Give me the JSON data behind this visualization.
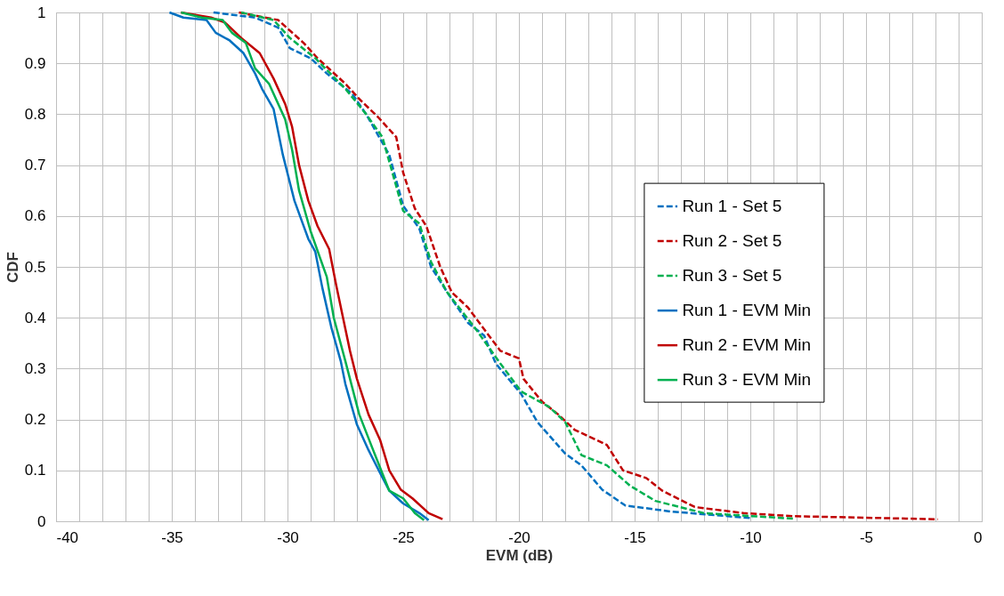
{
  "chart_data": {
    "type": "line",
    "xlabel": "EVM (dB)",
    "ylabel": "CDF",
    "xlim": [
      -40,
      0
    ],
    "ylim": [
      0,
      1
    ],
    "xticks": [
      -40,
      {
        "value": -39,
        "label": null
      },
      {
        "value": -38,
        "label": null
      },
      {
        "value": -37,
        "label": null
      },
      {
        "value": -36,
        "label": null
      },
      -35,
      {
        "value": -34,
        "label": null
      },
      {
        "value": -33,
        "label": null
      },
      {
        "value": -32,
        "label": null
      },
      {
        "value": -31,
        "label": null
      },
      -30,
      {
        "value": -29,
        "label": null
      },
      {
        "value": -28,
        "label": null
      },
      {
        "value": -27,
        "label": null
      },
      {
        "value": -26,
        "label": null
      },
      -25,
      {
        "value": -24,
        "label": null
      },
      {
        "value": -23,
        "label": null
      },
      {
        "value": -22,
        "label": null
      },
      {
        "value": -21,
        "label": null
      },
      -20,
      {
        "value": -19,
        "label": null
      },
      {
        "value": -18,
        "label": null
      },
      {
        "value": -17,
        "label": null
      },
      {
        "value": -16,
        "label": null
      },
      -15,
      {
        "value": -14,
        "label": null
      },
      {
        "value": -13,
        "label": null
      },
      {
        "value": -12,
        "label": null
      },
      {
        "value": -11,
        "label": null
      },
      -10,
      {
        "value": -9,
        "label": null
      },
      {
        "value": -8,
        "label": null
      },
      {
        "value": -7,
        "label": null
      },
      {
        "value": -6,
        "label": null
      },
      -5,
      {
        "value": -4,
        "label": null
      },
      {
        "value": -3,
        "label": null
      },
      {
        "value": -2,
        "label": null
      },
      {
        "value": -1,
        "label": null
      },
      0
    ],
    "yticks": [
      0,
      0.1,
      0.2,
      0.3,
      0.4,
      0.5,
      0.6,
      0.7,
      0.8,
      0.9,
      1
    ],
    "grid": true,
    "legend": "right",
    "marker": "none",
    "series": [
      {
        "name": "Run 1 - Set 5",
        "color": "#0070c0",
        "line_style": "dashed",
        "x": [
          -33.2,
          -31.4,
          -30.4,
          -29.9,
          -29.0,
          -28.3,
          -27.2,
          -26.6,
          -26.1,
          -25.6,
          -25.0,
          -24.3,
          -24.0,
          -23.8,
          -23.1,
          -22.2,
          -21.5,
          -21.0,
          -19.9,
          -19.2,
          -18.0,
          -17.3,
          -16.4,
          -15.4,
          -13.4,
          -9.9
        ],
        "values": [
          1,
          0.99,
          0.97,
          0.93,
          0.91,
          0.88,
          0.84,
          0.8,
          0.76,
          0.72,
          0.62,
          0.575,
          0.53,
          0.5,
          0.45,
          0.39,
          0.365,
          0.31,
          0.25,
          0.195,
          0.133,
          0.11,
          0.062,
          0.031,
          0.019,
          0.006
        ]
      },
      {
        "name": "Run 2 - Set 5",
        "color": "#c00000",
        "line_style": "dashed",
        "x": [
          -32.1,
          -30.4,
          -29.3,
          -28.7,
          -27.5,
          -26.9,
          -26.1,
          -25.3,
          -25.0,
          -24.5,
          -24.0,
          -23.4,
          -22.9,
          -22.2,
          -21.3,
          -20.8,
          -20.0,
          -19.8,
          -19.0,
          -18.3,
          -17.6,
          -16.2,
          -15.5,
          -14.5,
          -13.8,
          -12.4,
          -10.3,
          -8.1,
          -1.9
        ],
        "values": [
          1,
          0.985,
          0.94,
          0.91,
          0.86,
          0.83,
          0.795,
          0.755,
          0.685,
          0.615,
          0.58,
          0.5,
          0.45,
          0.42,
          0.365,
          0.335,
          0.32,
          0.28,
          0.235,
          0.21,
          0.18,
          0.15,
          0.1,
          0.085,
          0.06,
          0.028,
          0.016,
          0.01,
          0.004
        ]
      },
      {
        "name": "Run 3 - Set 5",
        "color": "#00b050",
        "line_style": "dashed",
        "x": [
          -32.0,
          -30.6,
          -29.9,
          -28.8,
          -27.5,
          -26.6,
          -25.9,
          -25.0,
          -24.3,
          -23.8,
          -23.1,
          -21.9,
          -20.8,
          -19.9,
          -18.7,
          -18.0,
          -17.3,
          -16.2,
          -15.2,
          -14.1,
          -12.0,
          -8.1
        ],
        "values": [
          1,
          0.985,
          0.95,
          0.91,
          0.85,
          0.8,
          0.755,
          0.61,
          0.585,
          0.51,
          0.45,
          0.38,
          0.31,
          0.255,
          0.225,
          0.195,
          0.13,
          0.11,
          0.07,
          0.04,
          0.016,
          0.005
        ]
      },
      {
        "name": "Run 1 - EVM Min",
        "color": "#0070c0",
        "line_style": "solid",
        "x": [
          -35.1,
          -34.5,
          -33.5,
          -33.1,
          -32.5,
          -31.9,
          -31.4,
          -31.1,
          -30.6,
          -30.2,
          -29.7,
          -29.1,
          -28.8,
          -28.5,
          -28.1,
          -27.7,
          -27.5,
          -27.0,
          -26.5,
          -26.0,
          -25.6,
          -25.0,
          -24.3,
          -23.9
        ],
        "values": [
          1,
          0.99,
          0.985,
          0.96,
          0.945,
          0.92,
          0.88,
          0.85,
          0.81,
          0.72,
          0.63,
          0.555,
          0.53,
          0.46,
          0.38,
          0.315,
          0.27,
          0.19,
          0.14,
          0.095,
          0.06,
          0.035,
          0.016,
          0.002
        ]
      },
      {
        "name": "Run 2 - EVM Min",
        "color": "#c00000",
        "line_style": "solid",
        "x": [
          -34.6,
          -33.3,
          -32.7,
          -32.0,
          -31.2,
          -30.6,
          -30.1,
          -29.8,
          -29.5,
          -29.1,
          -28.7,
          -28.2,
          -27.9,
          -27.6,
          -27.3,
          -27.0,
          -26.5,
          -26.0,
          -25.6,
          -25.1,
          -24.6,
          -23.9,
          -23.3
        ],
        "values": [
          1,
          0.99,
          0.98,
          0.95,
          0.92,
          0.87,
          0.82,
          0.775,
          0.7,
          0.63,
          0.58,
          0.535,
          0.465,
          0.4,
          0.335,
          0.28,
          0.21,
          0.16,
          0.1,
          0.062,
          0.045,
          0.016,
          0.004
        ]
      },
      {
        "name": "Run 3 - EVM Min",
        "color": "#00b050",
        "line_style": "solid",
        "x": [
          -34.6,
          -33.7,
          -32.8,
          -32.4,
          -31.8,
          -31.4,
          -30.8,
          -30.1,
          -29.8,
          -29.5,
          -29.0,
          -28.3,
          -28.0,
          -27.5,
          -26.9,
          -26.3,
          -25.6,
          -25.0,
          -24.5,
          -24.1
        ],
        "values": [
          1,
          0.99,
          0.985,
          0.96,
          0.94,
          0.89,
          0.86,
          0.79,
          0.73,
          0.65,
          0.57,
          0.48,
          0.4,
          0.315,
          0.21,
          0.14,
          0.06,
          0.045,
          0.016,
          0.002
        ]
      }
    ]
  }
}
